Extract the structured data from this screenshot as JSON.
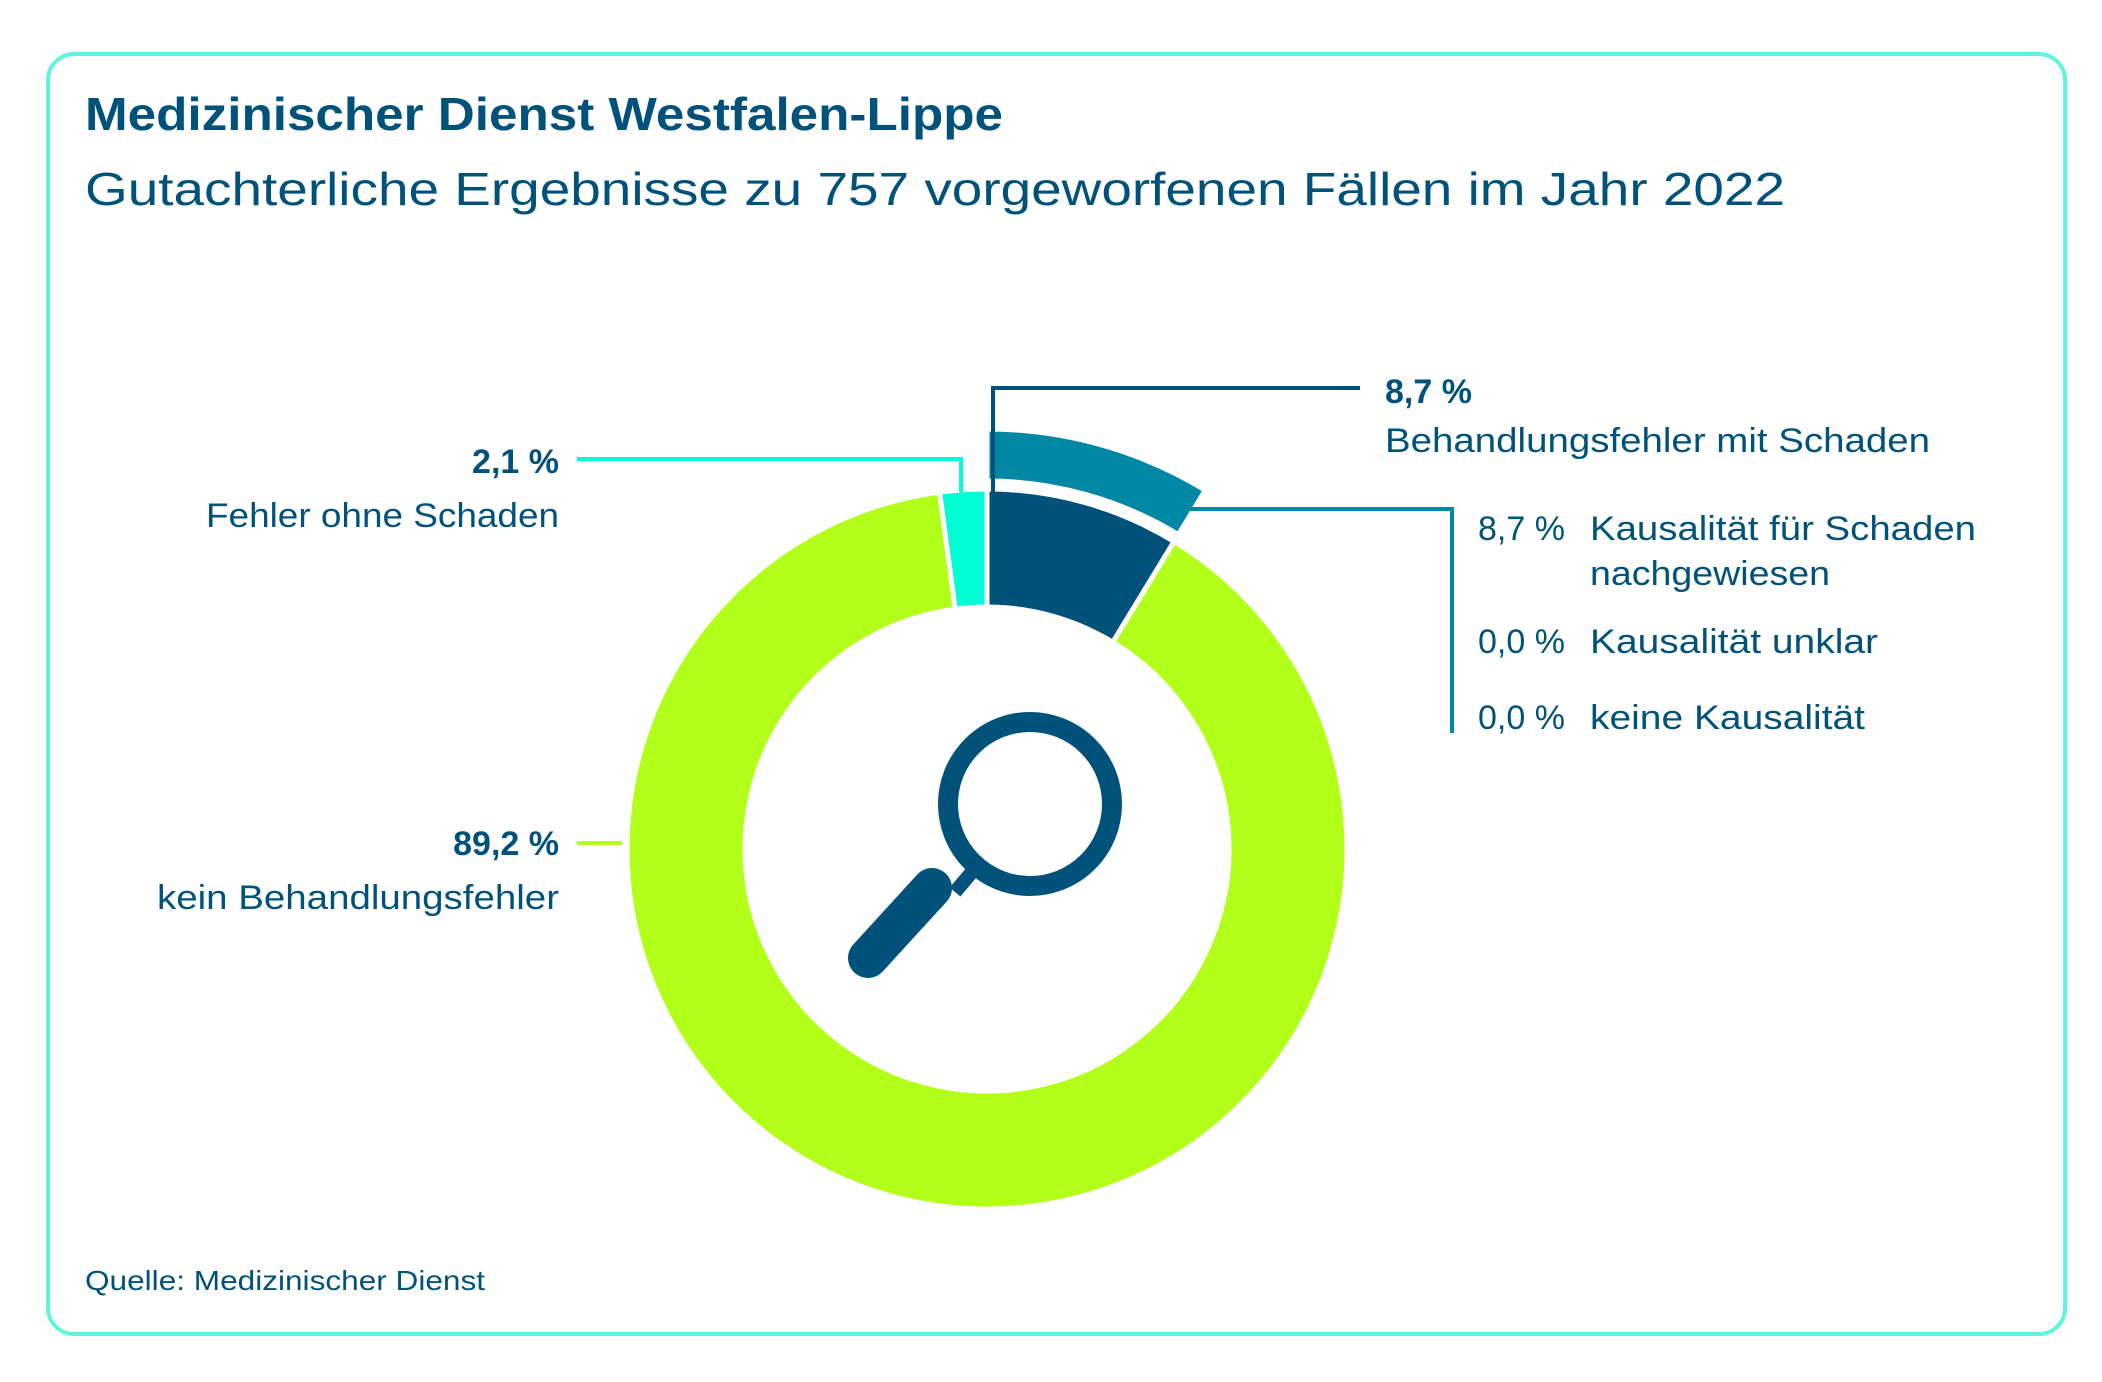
{
  "header": {
    "title": "Medizinischer Dienst Westfalen-Lippe",
    "subtitle": "Gutachterliche Ergebnisse zu 757 vorgeworfenen Fällen im Jahr 2022"
  },
  "source": "Quelle: Medizinischer Dienst",
  "colors": {
    "frame": "#5ef5e0",
    "text": "#00527a",
    "kein_behandlungsfehler": "#b2ff1a",
    "fehler_ohne_schaden": "#00ffd5",
    "behandlungsfehler_mit_schaden": "#00527a",
    "kausalitaet_nachgewiesen": "#0087a3"
  },
  "center_icon": "magnifying-glass-icon",
  "chart_data": {
    "type": "pie",
    "variant": "donut",
    "unit": "%",
    "slices": [
      {
        "label": "Behandlungsfehler mit Schaden",
        "value": 8.7,
        "value_label": "8,7 %"
      },
      {
        "label": "kein Behandlungsfehler",
        "value": 89.2,
        "value_label": "89,2 %"
      },
      {
        "label": "Fehler ohne Schaden",
        "value": 2.1,
        "value_label": "2,1 %"
      }
    ],
    "breakdown": {
      "parent": "Behandlungsfehler mit Schaden",
      "items": [
        {
          "value": 8.7,
          "value_label": "8,7 %",
          "label": "Kausalität für Schaden",
          "label_line2": "nachgewiesen"
        },
        {
          "value": 0.0,
          "value_label": "0,0 %",
          "label": "Kausalität unklar"
        },
        {
          "value": 0.0,
          "value_label": "0,0 %",
          "label": "keine Kausalität"
        }
      ]
    }
  }
}
